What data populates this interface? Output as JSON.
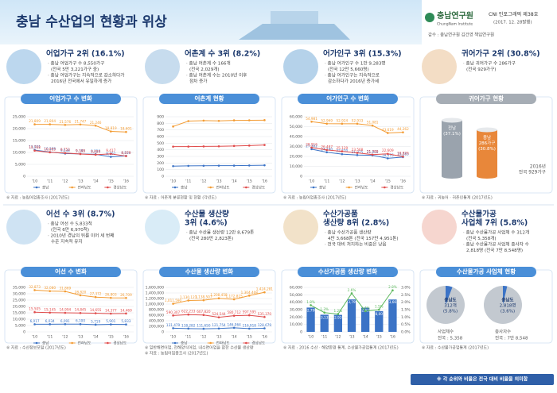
{
  "header": {
    "title": "충남 수산업의 현황과 위상",
    "logo": "충남연구원",
    "logo_sub": "ChungNam Institute",
    "series_no": "CNI 인포그래픽 제38호",
    "date": "(2017. 12. 28발행)",
    "supervisor": "감수 : 충남연구원 김건영 책임연구원"
  },
  "panels": [
    {
      "heading": [
        "어업가구 2위 (16.1%)"
      ],
      "bullets": [
        [
          "· 충남 어업가구 수 8,550가구",
          "(전국 5만 3,221가구 중)"
        ],
        [
          "· 충남 어업가구는 지속적으로 감소하다가",
          "2016년 전국에서 유일하게 증가"
        ]
      ],
      "source": [
        "※ 자료 : 농림어업총조사 (2017년도)"
      ]
    },
    {
      "heading": [
        "어촌계 수 3위 (8.2%)"
      ],
      "bullets": [
        [
          "· 충남 어촌계 수 166개",
          "(전국 2,029개)"
        ],
        [
          "· 충남 어촌계 수는 2010년 이후",
          "점차 증가"
        ]
      ],
      "source": [
        "※ 자료 : 어촌계 분류현황 및 현황 (각년도)"
      ]
    },
    {
      "heading": [
        "어가인구 3위 (15.3%)"
      ],
      "bullets": [
        [
          "· 충남 어가인구 수 1만 9,283명",
          "(전국 12만 5,660명)"
        ],
        [
          "· 충남 어가인구는 지속적으로",
          "감소하다가 2016년 증가세"
        ]
      ],
      "source": [
        "※ 자료 : 농림어업총조사 (2017년도)"
      ]
    },
    {
      "heading": [
        "귀어가구 2위 (30.8%)"
      ],
      "bullets": [
        [
          "· 충남 귀어가구 수 286가구",
          "(전국 929가구)"
        ]
      ],
      "source": [
        "※ 자료 : 귀농어 · 귀촌인통계 (2017년도)"
      ]
    },
    {
      "heading": [
        "어선 수 3위 (8.7%)"
      ],
      "bullets": [
        [
          "· 충남 어선 수 5,833척",
          "(전국 6만 6,970척)"
        ],
        [
          "· 2010년 경남의 뒤를 이어 세 번째",
          "수준 지속적 유지"
        ]
      ],
      "source": [
        "※ 자료 : 수산정보포털 (2017년도)"
      ]
    },
    {
      "heading": [
        "수산물 생산량",
        "3위 (4.6%)"
      ],
      "bullets": [
        [
          "· 충남 수산물 생산량 12만 8,679톤",
          "(전국 280만 2,823톤)"
        ]
      ],
      "source": [
        "※ 일반해면어업, 천해양식어업, 내수면어업을 합한 수산물 생산량",
        "※ 자료 : 농림어업총조사 (2017년도)"
      ]
    },
    {
      "heading": [
        "수산가공품",
        "생산량 8위 (2.8%)"
      ],
      "bullets": [
        [
          "· 충남 수산가공품 생산량",
          "4만 3,668톤 (전국 157만 4,951톤)"
        ],
        [
          "· 전국 대비 처지하는 비중은 낮음"
        ]
      ],
      "source": [
        "※ 자료 : 2016 수산 · 해양환경 통계, 수산물가공업통계 (2017년도)"
      ]
    },
    {
      "heading": [
        "수산물가공",
        "사업체 7위 (5.8%)"
      ],
      "bullets": [
        [
          "· 충남 수산물가공 사업체 수 312개",
          "(전국 5,358개)"
        ],
        [
          "· 충남 수산물가공 사업체 종사자 수",
          "2,818명 (전국 7만 8,548명)"
        ]
      ],
      "source": [
        "※ 자료 : 수산물가공업통계 (2017년도)"
      ]
    }
  ],
  "footer": "※ 각 순위와 비율은 전국 대비 비율을 의미함",
  "chart_data": [
    {
      "type": "line",
      "title": "어업가구 수 변화",
      "categories": [
        "'10",
        "'11",
        "'12",
        "'13",
        "'14",
        "'15",
        "'16"
      ],
      "ylim": [
        0,
        25000
      ],
      "yticks": [
        0,
        {
          "value": 5000,
          "label": "5,000"
        },
        {
          "value": 10000,
          "label": "10,000"
        },
        {
          "value": 15000,
          "label": "15,000"
        },
        {
          "value": 20000,
          "label": "20,000"
        },
        {
          "value": 25000,
          "label": "25,000"
        }
      ],
      "grid": true,
      "series": [
        {
          "name": "충남",
          "color": "#3b73c6",
          "values": [
            11021,
            10169,
            9538,
            9385,
            9229,
            8162,
            8550
          ],
          "value_labels": [
            "11,021",
            "10,169",
            "9,538",
            "9,385",
            "9,229",
            "8,162",
            "8,550"
          ]
        },
        {
          "name": "전라남도",
          "color": "#f39c34",
          "values": [
            21809,
            21804,
            21576,
            21747,
            21246,
            18819,
            18601
          ],
          "value_labels": [
            "21,809",
            "21,804",
            "21,576",
            "21,747",
            "21,246",
            "18,819",
            "18,601"
          ]
        },
        {
          "name": "경상남도",
          "color": "#e04c4c",
          "values": [
            10768,
            10055,
            9753,
            9348,
            9050,
            9417,
            8479
          ],
          "value_labels": [
            "10,768",
            "10,055",
            "9,753",
            "9,348",
            "9,050",
            "9,417",
            "8,479"
          ]
        }
      ]
    },
    {
      "type": "line",
      "title": "어촌계 현황",
      "categories": [
        "'10",
        "'11",
        "'12",
        "'13",
        "'14",
        "'15",
        "'16"
      ],
      "ylim": [
        0,
        900
      ],
      "yticks": [
        0,
        100,
        200,
        300,
        400,
        500,
        600,
        700,
        800,
        900
      ],
      "grid": true,
      "series": [
        {
          "name": "충남",
          "color": "#3b73c6",
          "values": [
            153,
            157,
            159,
            160,
            161,
            163,
            166
          ]
        },
        {
          "name": "전라남도",
          "color": "#f39c34",
          "values": [
            752,
            834,
            841,
            837,
            845,
            846,
            848
          ]
        },
        {
          "name": "경상남도",
          "color": "#e04c4c",
          "values": [
            448,
            449,
            451,
            453,
            458,
            464,
            473
          ]
        }
      ]
    },
    {
      "type": "line",
      "title": "어가인구 수 변화",
      "categories": [
        "'10",
        "'11",
        "'12",
        "'13",
        "'14",
        "'15",
        "'16"
      ],
      "ylim": [
        0,
        60000
      ],
      "yticks": [
        0,
        {
          "value": 10000,
          "label": "10,000"
        },
        {
          "value": 20000,
          "label": "20,000"
        },
        {
          "value": 30000,
          "label": "30,000"
        },
        {
          "value": 40000,
          "label": "40,000"
        },
        {
          "value": 50000,
          "label": "50,000"
        },
        {
          "value": 60000,
          "label": "60,000"
        }
      ],
      "grid": true,
      "series": [
        {
          "name": "충남",
          "color": "#3b73c6",
          "values": [
            27302,
            24190,
            22270,
            21375,
            21059,
            18076,
            19283
          ],
          "value_labels": [
            "27,302",
            "24,190",
            "22,270",
            "21,375",
            "21,059",
            "18,076",
            "19,283"
          ]
        },
        {
          "name": "전라남도",
          "color": "#f39c34",
          "values": [
            54981,
            52969,
            52924,
            52933,
            51081,
            43619,
            44262
          ],
          "value_labels": [
            "54,981",
            "52,969",
            "52,924",
            "52,933",
            "51,081",
            "43,619",
            "44,262"
          ]
        },
        {
          "name": "경상남도",
          "color": "#e04c4c",
          "values": [
            28916,
            26487,
            25129,
            23568,
            21789,
            22609,
            19826
          ],
          "value_labels": [
            "28,916",
            "26,487",
            "25,129",
            "23,568",
            "21,789",
            "22,609",
            "19,826"
          ]
        }
      ]
    },
    {
      "type": "cylinder",
      "title": "귀어가구 현황",
      "categories": [
        "전남",
        "충남"
      ],
      "values": [
        37.1,
        30.8
      ],
      "value_labels": [
        "(37.1%)",
        "(30.8%)"
      ],
      "color": "#9aa3ad",
      "highlight": "#e8873a",
      "count_label": "286가구",
      "caption": [
        "2016년",
        "전국 929가구"
      ]
    },
    {
      "type": "line",
      "title": "어선 수 변화",
      "categories": [
        "'10",
        "'11",
        "'12",
        "'13",
        "'14",
        "'15",
        "'16"
      ],
      "ylim": [
        0,
        35000
      ],
      "yticks": [
        0,
        {
          "value": 5000,
          "label": "5,000"
        },
        {
          "value": 10000,
          "label": "10,000"
        },
        {
          "value": 15000,
          "label": "15,000"
        },
        {
          "value": 20000,
          "label": "20,000"
        },
        {
          "value": 25000,
          "label": "25,000"
        },
        {
          "value": 30000,
          "label": "30,000"
        },
        {
          "value": 35000,
          "label": "35,000"
        }
      ],
      "grid": true,
      "series": [
        {
          "name": "충남",
          "color": "#3b73c6",
          "values": [
            6017,
            6034,
            6091,
            6100,
            5719,
            5901,
            5833
          ],
          "value_labels": [
            "6,017",
            "6,034",
            "6,091",
            "6,100",
            "5,719",
            "5,901",
            "5,833"
          ]
        },
        {
          "name": "전라남도",
          "color": "#f39c34",
          "values": [
            32873,
            32080,
            31869,
            28820,
            27372,
            26803,
            26709
          ],
          "value_labels": [
            "32,873",
            "32,080",
            "31,869",
            "28,820",
            "27,372",
            "26,803",
            "26,709"
          ]
        },
        {
          "name": "경상남도",
          "color": "#e04c4c",
          "values": [
            15505,
            15145,
            14994,
            14845,
            14655,
            14377,
            14469
          ],
          "value_labels": [
            "15,505",
            "15,145",
            "14,994",
            "14,845",
            "14,655",
            "14,377",
            "14,469"
          ]
        }
      ]
    },
    {
      "type": "line",
      "title": "수산물 생산량 변화",
      "categories": [
        "'10",
        "'11",
        "'12",
        "'13",
        "'14",
        "'15",
        "'16"
      ],
      "ylim": [
        0,
        1600000
      ],
      "yticks": [
        0,
        {
          "value": 200000,
          "label": "200,000"
        },
        {
          "value": 400000,
          "label": "400,000"
        },
        {
          "value": 600000,
          "label": "600,000"
        },
        {
          "value": 800000,
          "label": "800,000"
        },
        {
          "value": 1000000,
          "label": "1,000,000"
        },
        {
          "value": 1200000,
          "label": "1,200,000"
        },
        {
          "value": 1400000,
          "label": "1,400,000"
        },
        {
          "value": 1600000,
          "label": "1,600,000"
        }
      ],
      "grid": true,
      "series": [
        {
          "name": "충남",
          "color": "#3b73c6",
          "values": [
            131479,
            118282,
            111650,
            121754,
            146064,
            116918,
            128679
          ],
          "value_labels": [
            "131,479",
            "118,282",
            "111,650",
            "121,754",
            "146,064",
            "116,918",
            "128,679"
          ]
        },
        {
          "name": "전라남도",
          "color": "#f39c34",
          "values": [
            1011590,
            1130121,
            1138507,
            1208458,
            1172815,
            1304408,
            1424281
          ],
          "value_labels": [
            "1,011,590",
            "1,130,121",
            "1,138,507",
            "1,208,458",
            "1,172,815",
            "1,304,408",
            "1,424,281"
          ]
        },
        {
          "name": "경상남도",
          "color": "#e04c4c",
          "values": [
            590307,
            622233,
            607820,
            524544,
            580712,
            597595,
            535370
          ],
          "value_labels": [
            "590,307",
            "622,233",
            "607,820",
            "524,544",
            "580,712",
            "597,595",
            "535,370"
          ]
        }
      ]
    },
    {
      "type": "combo",
      "title": "수산가공품 생산량 변화",
      "categories": [
        "'10",
        "'11",
        "'12",
        "'13",
        "'14",
        "'15",
        "'16"
      ],
      "ylim": [
        0,
        60000
      ],
      "yticks": [
        0,
        {
          "value": 10000,
          "label": "10,000"
        },
        {
          "value": 20000,
          "label": "20,000"
        },
        {
          "value": 30000,
          "label": "30,000"
        },
        {
          "value": 40000,
          "label": "40,000"
        },
        {
          "value": 50000,
          "label": "50,000"
        },
        {
          "value": 60000,
          "label": "60,000"
        }
      ],
      "y2lim": [
        0,
        3.0
      ],
      "y2ticks": [
        {
          "value": 0,
          "label": "0.0%"
        },
        {
          "value": 0.5,
          "label": "0.5%"
        },
        {
          "value": 1.0,
          "label": "1.0%"
        },
        {
          "value": 1.5,
          "label": "1.5%"
        },
        {
          "value": 2.0,
          "label": "2.0%"
        },
        {
          "value": 2.5,
          "label": "2.5%"
        },
        {
          "value": 3.0,
          "label": "3.0%"
        }
      ],
      "grid": true,
      "series": [
        {
          "type": "bar",
          "color": "#3b73c6",
          "values": [
            32796,
            23135,
            22926,
            43799,
            32623,
            28001,
            43668
          ],
          "value_labels": [
            "32,796",
            "23,135",
            "22,926",
            "43,799",
            "32,623",
            "28,001",
            "43,668"
          ]
        },
        {
          "type": "line",
          "axis": "y2",
          "color": "#5cb85c",
          "values": [
            1.8,
            1.3,
            1.2,
            2.6,
            1.4,
            1.5,
            2.8
          ],
          "value_labels": [
            "1.8%",
            "1.3%",
            "1.2%",
            "2.6%",
            "1.4%",
            "1.5%",
            "2.8%"
          ]
        }
      ]
    },
    {
      "type": "pie",
      "title": "수산물가공 사업체 현황",
      "color": "#3b73c6",
      "rest_color": "#c3c9d0",
      "pies": [
        {
          "title": "사업체수",
          "total": "전국 : 5,358",
          "name": "충남도",
          "count": "312개",
          "value": 5.8,
          "value_label": "(5.8%)"
        },
        {
          "title": "종사자수",
          "total": "전국 : 7만 8,548",
          "name": "충남도",
          "count": "2,818명",
          "value": 3.6,
          "value_label": "(3.6%)"
        }
      ]
    }
  ]
}
